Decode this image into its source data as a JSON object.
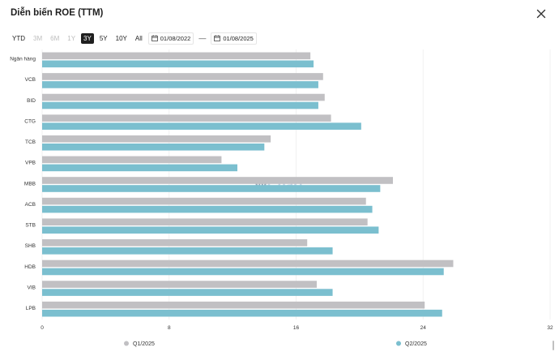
{
  "header": {
    "title": "Diễn biến ROE (TTM)",
    "close_icon": "close-icon"
  },
  "toolbar": {
    "ranges": [
      {
        "label": "YTD",
        "state": "normal"
      },
      {
        "label": "3M",
        "state": "disabled"
      },
      {
        "label": "6M",
        "state": "disabled"
      },
      {
        "label": "1Y",
        "state": "disabled"
      },
      {
        "label": "3Y",
        "state": "active"
      },
      {
        "label": "5Y",
        "state": "normal"
      },
      {
        "label": "10Y",
        "state": "normal"
      },
      {
        "label": "All",
        "state": "normal"
      }
    ],
    "date_from": "01/08/2022",
    "date_separator": "—",
    "date_to": "01/08/2025"
  },
  "watermark": {
    "prefix": "W",
    "text": "Chart"
  },
  "colors": {
    "q1": "#c1c0c3",
    "q2": "#7bbfcf",
    "grid": "#eeeeee",
    "axis_text": "#333333"
  },
  "chart_data": {
    "type": "bar",
    "orientation": "horizontal",
    "title": "Diễn biến ROE (TTM)",
    "categories": [
      "Ngân hàng",
      "VCB",
      "BID",
      "CTG",
      "TCB",
      "VPB",
      "MBB",
      "ACB",
      "STB",
      "SHB",
      "HDB",
      "VIB",
      "LPB"
    ],
    "series": [
      {
        "name": "Q1/2025",
        "values": [
          16.9,
          17.7,
          17.8,
          18.2,
          14.4,
          11.3,
          22.1,
          20.4,
          20.5,
          16.7,
          25.9,
          17.3,
          24.1
        ]
      },
      {
        "name": "Q2/2025",
        "values": [
          17.1,
          17.4,
          17.4,
          20.1,
          14.0,
          12.3,
          21.3,
          20.8,
          21.2,
          18.3,
          25.3,
          18.3,
          25.2
        ]
      }
    ],
    "xlim": [
      0,
      32
    ],
    "xticks": [
      "0",
      "8",
      "16",
      "24",
      "32"
    ],
    "legend_position": "bottom"
  }
}
